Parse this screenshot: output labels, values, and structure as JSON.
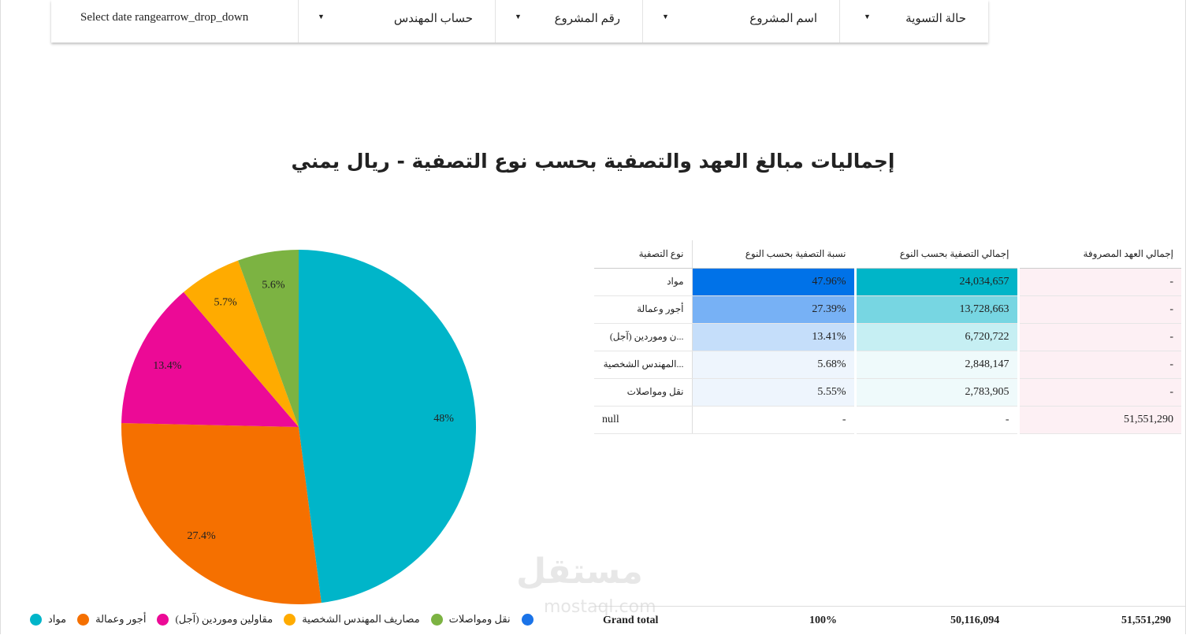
{
  "filters": [
    {
      "label": "Select date rangearrow_drop_down"
    },
    {
      "label": "حساب المهندس"
    },
    {
      "label": "رقم المشروع"
    },
    {
      "label": "اسم المشروع"
    },
    {
      "label": "حالة التسوية"
    }
  ],
  "watermark": {
    "logo": "مستقل",
    "url": "mostaql.com"
  },
  "chart_data": {
    "type": "pie",
    "title": "إجماليات مبالغ العهد والتصفية بحسب نوع التصفية - ريال يمني",
    "categories": [
      "مواد",
      "أجور وعمالة",
      "مقاولين وموردين (آجل)",
      "مصاريف المهندس الشخصية",
      "نقل ومواصلات",
      ""
    ],
    "values": [
      24034657,
      13728663,
      6720722,
      2848147,
      2783905
    ],
    "labels": [
      "48%",
      "27.4%",
      "13.4%",
      "5.7%",
      "5.6%"
    ],
    "colors": [
      "#00b5c9",
      "#f57000",
      "#ec0a96",
      "#ffab00",
      "#7cb342",
      "#1a73e8"
    ],
    "legend": "bottom"
  },
  "table": {
    "headers": [
      "نوع التصفية",
      "نسبة التصفية بحسب النوع",
      "إجمالي التصفية بحسب النوع",
      "إجمالي العهد المصروفة"
    ],
    "rows": [
      [
        "مواد",
        "47.96%",
        "24,034,657",
        "-"
      ],
      [
        "أجور وعمالة",
        "27.39%",
        "13,728,663",
        "-"
      ],
      [
        "...ن وموردين (آجل)",
        "13.41%",
        "6,720,722",
        "-"
      ],
      [
        "...المهندس الشخصية",
        "5.68%",
        "2,848,147",
        "-"
      ],
      [
        "نقل ومواصلات",
        "5.55%",
        "2,783,905",
        "-"
      ],
      [
        "null",
        "-",
        "-",
        "51,551,290"
      ]
    ],
    "heat2": [
      "#0072e8",
      "#77b1f5",
      "#c5defa",
      "#eef5fd",
      "#eef5fd",
      "#ffffff"
    ],
    "heat3": [
      "#00b5c8",
      "#77d6e2",
      "#c6eff3",
      "#effafb",
      "#effafb",
      "#ffffff"
    ],
    "grand_total": {
      "label": "Grand total",
      "pct": "100%",
      "total": "50,116,094",
      "expended": "51,551,290"
    }
  }
}
